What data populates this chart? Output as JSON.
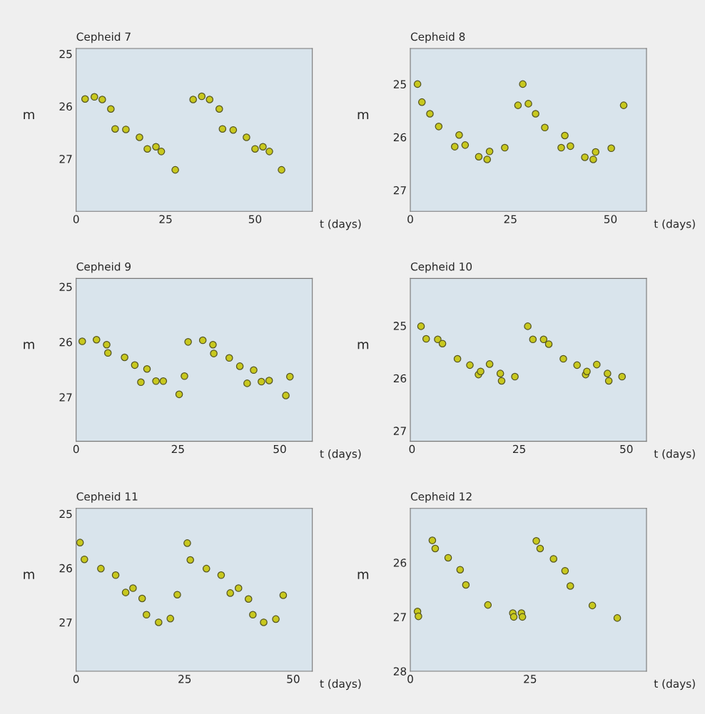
{
  "chart_data": [
    {
      "type": "scatter",
      "title": "Cepheid 7",
      "xlabel": "t (days)",
      "ylabel": "m",
      "marker": "circle",
      "color": "#c8c81e",
      "xlim": [
        0,
        66
      ],
      "ylim": [
        28,
        24.9
      ],
      "xticks": [
        0,
        25,
        50
      ],
      "yticks": [
        25,
        26,
        27
      ],
      "x": [
        2.5,
        5.1,
        7.3,
        9.7,
        10.9,
        13.9,
        17.7,
        19.9,
        22.3,
        23.8,
        27.7,
        32.7,
        35.1,
        37.3,
        40,
        40.9,
        43.9,
        47.6,
        50,
        52.2,
        54,
        57.4
      ],
      "values": [
        25.86,
        25.82,
        25.87,
        26.05,
        26.43,
        26.44,
        26.59,
        26.81,
        26.77,
        26.86,
        27.21,
        25.87,
        25.81,
        25.87,
        26.05,
        26.43,
        26.45,
        26.59,
        26.81,
        26.77,
        26.86,
        27.21
      ]
    },
    {
      "type": "scatter",
      "title": "Cepheid 8",
      "xlabel": "t (days)",
      "ylabel": "m",
      "marker": "circle",
      "color": "#c8c81e",
      "xlim": [
        0,
        59
      ],
      "ylim": [
        27.4,
        24.33
      ],
      "xticks": [
        0,
        25,
        50
      ],
      "yticks": [
        25,
        26,
        27
      ],
      "x": [
        1.8,
        2.9,
        4.9,
        7.1,
        11.1,
        12.2,
        13.7,
        17.1,
        19.2,
        19.8,
        23.6,
        26.9,
        28.1,
        29.5,
        31.3,
        33.6,
        37.7,
        38.6,
        40.0,
        43.6,
        45.7,
        46.3,
        50.2,
        53.3
      ],
      "values": [
        25.0,
        25.34,
        25.56,
        25.8,
        26.18,
        25.96,
        26.15,
        26.37,
        26.42,
        26.27,
        26.2,
        25.4,
        25.0,
        25.37,
        25.56,
        25.82,
        26.2,
        25.97,
        26.17,
        26.38,
        26.42,
        26.28,
        26.21,
        25.4
      ]
    },
    {
      "type": "scatter",
      "title": "Cepheid 9",
      "xlabel": "t (days)",
      "ylabel": "m",
      "marker": "circle",
      "color": "#c8c81e",
      "xlim": [
        0,
        58
      ],
      "ylim": [
        27.8,
        24.85
      ],
      "xticks": [
        0,
        25,
        50
      ],
      "yticks": [
        25,
        26,
        27
      ],
      "x": [
        1.5,
        5.0,
        7.5,
        7.8,
        11.9,
        14.4,
        17.4,
        15.9,
        19.6,
        21.4,
        25.3,
        26.6,
        27.5,
        31.1,
        33.6,
        33.8,
        37.6,
        40.2,
        43.6,
        42.0,
        45.5,
        47.4,
        51.5,
        52.5
      ],
      "values": [
        25.99,
        25.96,
        26.05,
        26.2,
        26.28,
        26.42,
        26.49,
        26.73,
        26.71,
        26.71,
        26.95,
        26.62,
        26.0,
        25.97,
        26.05,
        26.21,
        26.29,
        26.44,
        26.51,
        26.75,
        26.72,
        26.7,
        26.97,
        26.63
      ]
    },
    {
      "type": "scatter",
      "title": "Cepheid 10",
      "xlabel": "t (days)",
      "ylabel": "m",
      "marker": "circle",
      "color": "#c8c81e",
      "xlim": [
        -0.4,
        54.7
      ],
      "ylim": [
        27.2,
        24.1
      ],
      "xticks": [
        0,
        25,
        50
      ],
      "yticks": [
        25,
        26,
        27
      ],
      "x": [
        2.1,
        3.3,
        6.0,
        7.1,
        10.6,
        13.5,
        15.5,
        16.0,
        18.1,
        20.6,
        20.9,
        24.0,
        27.0,
        28.2,
        30.7,
        31.9,
        35.3,
        38.5,
        40.5,
        40.8,
        43.1,
        45.6,
        45.9,
        49.0
      ],
      "values": [
        25.01,
        25.25,
        25.26,
        25.34,
        25.63,
        25.75,
        25.93,
        25.87,
        25.73,
        25.91,
        26.05,
        25.97,
        25.01,
        25.26,
        25.26,
        25.35,
        25.63,
        25.75,
        25.93,
        25.87,
        25.74,
        25.91,
        26.05,
        25.97
      ]
    },
    {
      "type": "scatter",
      "title": "Cepheid 11",
      "xlabel": "t (days)",
      "ylabel": "m",
      "marker": "circle",
      "color": "#c8c81e",
      "xlim": [
        0,
        54.4
      ],
      "ylim": [
        27.9,
        24.9
      ],
      "xticks": [
        0,
        25,
        50
      ],
      "yticks": [
        25,
        26,
        27
      ],
      "x": [
        0.9,
        1.9,
        5.7,
        9.1,
        11.4,
        13.1,
        15.2,
        16.2,
        19.0,
        21.7,
        23.3,
        25.6,
        26.3,
        30.0,
        33.4,
        35.5,
        37.4,
        39.7,
        40.7,
        43.2,
        46.0,
        47.7
      ],
      "values": [
        25.53,
        25.84,
        26.01,
        26.13,
        26.45,
        26.37,
        26.56,
        26.86,
        27.0,
        26.93,
        26.49,
        25.54,
        25.85,
        26.01,
        26.13,
        26.46,
        26.37,
        26.57,
        26.86,
        27.0,
        26.94,
        26.5
      ]
    },
    {
      "type": "scatter",
      "title": "Cepheid 12",
      "xlabel": "t (days)",
      "ylabel": "m",
      "marker": "circle",
      "color": "#c8c81e",
      "xlim": [
        0,
        49.3
      ],
      "ylim": [
        28,
        25.0
      ],
      "xticks": [
        0,
        25
      ],
      "yticks": [
        26,
        27,
        28
      ],
      "x": [
        1.5,
        1.7,
        4.6,
        5.2,
        7.9,
        10.4,
        11.6,
        16.2,
        21.4,
        21.6,
        23.2,
        23.4,
        26.3,
        27.1,
        29.9,
        32.3,
        33.4,
        38.0,
        43.2
      ],
      "values": [
        26.9,
        26.99,
        25.59,
        25.74,
        25.91,
        26.13,
        26.41,
        26.78,
        26.93,
        27.0,
        26.93,
        27.0,
        25.6,
        25.74,
        25.93,
        26.15,
        26.43,
        26.79,
        27.02
      ]
    }
  ]
}
